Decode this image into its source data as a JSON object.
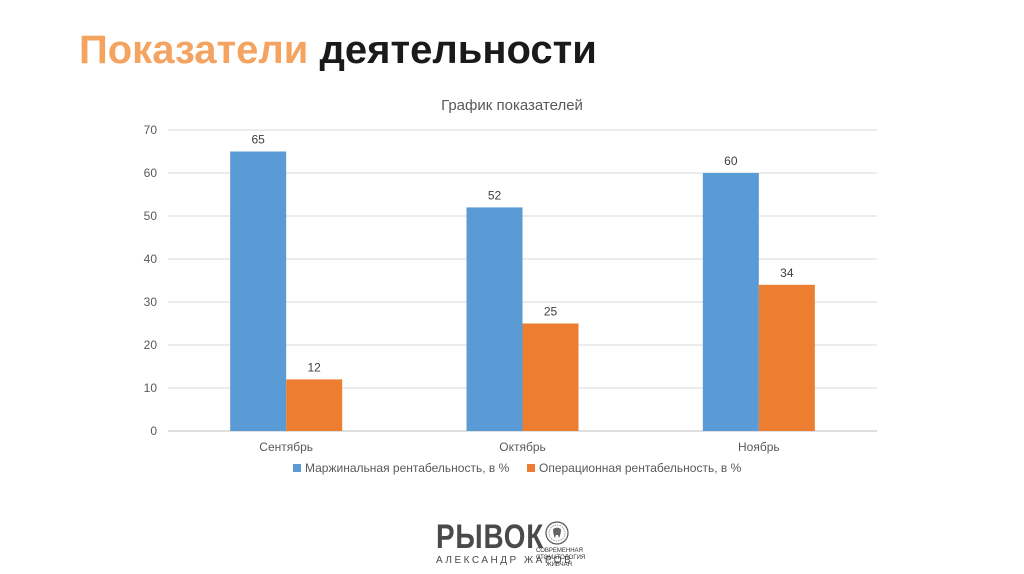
{
  "slide": {
    "title_accent": "Показатели",
    "title_rest": "деятельности"
  },
  "chart_data": {
    "type": "bar",
    "title": "График показателей",
    "categories": [
      "Сентябрь",
      "Октябрь",
      "Ноябрь"
    ],
    "series": [
      {
        "name": "Маржинальная рентабельность, в %",
        "values": [
          65,
          52,
          60
        ],
        "color": "#5b9bd5"
      },
      {
        "name": "Операционная рентабельность, в %",
        "values": [
          12,
          25,
          34
        ],
        "color": "#ed7d31"
      }
    ],
    "ylim": [
      0,
      70
    ],
    "yticks": [
      0,
      10,
      20,
      30,
      40,
      50,
      60,
      70
    ],
    "grid": true,
    "legend_position": "bottom",
    "xlabel": "",
    "ylabel": ""
  },
  "logo": {
    "main_text": "РЫВОК",
    "sub_text": "АЛЕКСАНДР ЖАРОВ",
    "caption_text": "СОВРЕМЕННАЯ СТОМАТОЛОГИЯ ЖИВЧАН"
  }
}
